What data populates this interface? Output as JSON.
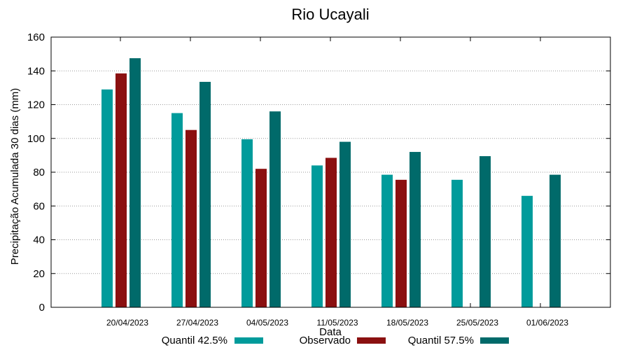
{
  "chart_data": {
    "type": "bar",
    "title": "Rio Ucayali",
    "xlabel": "Data",
    "ylabel": "Precipitação Acumulada 30 dias (mm)",
    "ylim": [
      0,
      160
    ],
    "yticks": [
      "0",
      "20",
      "40",
      "60",
      "80",
      "100",
      "120",
      "140",
      "160"
    ],
    "grid": true,
    "legend_position": "bottom",
    "categories": [
      "20/04/2023",
      "27/04/2023",
      "04/05/2023",
      "11/05/2023",
      "18/05/2023",
      "25/05/2023",
      "01/06/2023"
    ],
    "series": [
      {
        "name": "Quantil 42.5%",
        "color": "#009b9b",
        "values": [
          129,
          115,
          99.5,
          84,
          78.5,
          75.5,
          66
        ]
      },
      {
        "name": "Observado",
        "color": "#8b1010",
        "values": [
          138.5,
          105,
          82,
          88.5,
          75.5,
          null,
          null
        ]
      },
      {
        "name": "Quantil 57.5%",
        "color": "#006a6a",
        "values": [
          147.5,
          133.5,
          116,
          98,
          92,
          89.5,
          78.5
        ]
      }
    ]
  }
}
